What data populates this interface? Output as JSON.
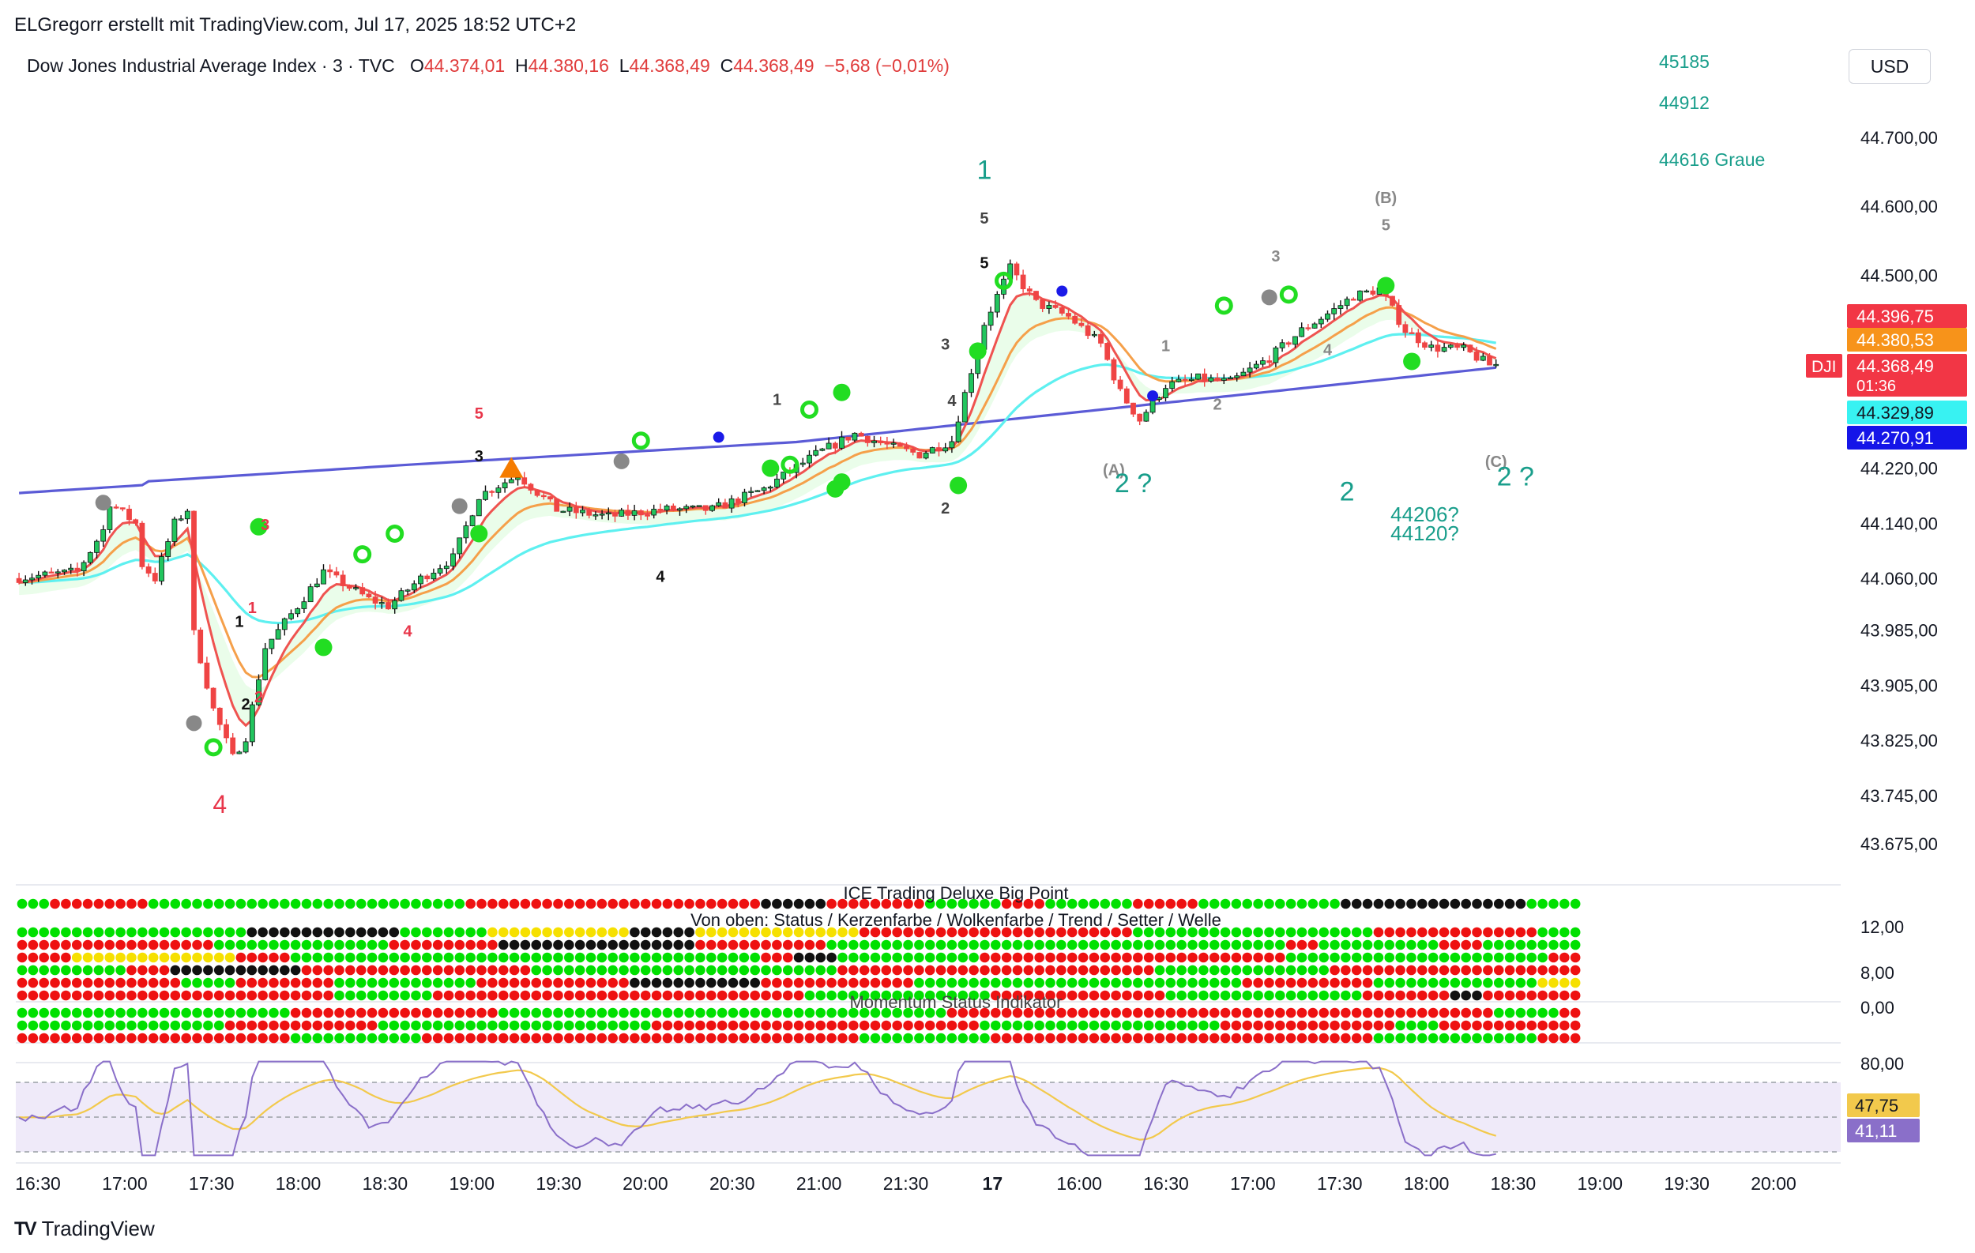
{
  "header": {
    "credit": "ELGregorr erstellt mit TradingView.com, Jul 17, 2025 18:52 UTC+2",
    "symbol": "Dow Jones Industrial Average Index · 3 · TVC",
    "open_label": "O",
    "open": "44.374,01",
    "high_label": "H",
    "high": "44.380,16",
    "low_label": "L",
    "low": "44.368,49",
    "close_label": "C",
    "close": "44.368,49",
    "change": "−5,68 (−0,01%)",
    "currency": "USD"
  },
  "footer": {
    "brand": "TradingView",
    "logo_text": "TV"
  },
  "colors": {
    "up": "#22c55e",
    "down": "#ef4444",
    "ema_red": "#ef5350",
    "ema_orange": "#f5a04a",
    "ema_cyan": "#5ef0f0",
    "ema_blue": "#5b5bd6",
    "wave_teal": "#199e8b",
    "wave_red": "#e8364a",
    "rsi": "#8a6fc9",
    "rsi_ma": "#f2c94c",
    "dot_green": "#00e000",
    "dot_red": "#ee1111",
    "dot_black": "#111111",
    "dot_yellow": "#f6e000",
    "dot_darkred": "#8b0000",
    "dot_darkgreen": "#0a7a0a"
  },
  "chart_data": {
    "type": "candlestick",
    "price_axis": {
      "range": [
        43625,
        44800
      ],
      "ticks": [
        "44.700,00",
        "44.600,00",
        "44.500,00",
        "44.220,00",
        "44.140,00",
        "44.060,00",
        "43.985,00",
        "43.905,00",
        "43.825,00",
        "43.745,00",
        "43.675,00"
      ],
      "tick_values": [
        44700,
        44600,
        44500,
        44220,
        44140,
        44060,
        43985,
        43905,
        43825,
        43745,
        43675
      ]
    },
    "time_axis": {
      "labels": [
        "16:30",
        "17:00",
        "17:30",
        "18:00",
        "18:30",
        "19:00",
        "19:30",
        "20:00",
        "20:30",
        "21:00",
        "21:30",
        "17",
        "16:00",
        "16:30",
        "17:00",
        "17:30",
        "18:00",
        "18:30",
        "19:00",
        "19:30",
        "20:00"
      ],
      "bold_index": 11
    },
    "price_tags": [
      {
        "text": "44.396,75",
        "value": 44396.75,
        "bg": "#f23645",
        "fg": "#ffffff"
      },
      {
        "text": "44.380,53",
        "value": 44380.53,
        "bg": "#f7931a",
        "fg": "#ffffff"
      },
      {
        "text": "44.368,49",
        "value": 44368.49,
        "bg": "#f23645",
        "fg": "#ffffff",
        "sub": "01:36",
        "side_label": "DJI"
      },
      {
        "text": "44.329,89",
        "value": 44329.89,
        "bg": "#38f2f2",
        "fg": "#131722"
      },
      {
        "text": "44.270,91",
        "value": 44270.91,
        "bg": "#1515e8",
        "fg": "#ffffff"
      }
    ],
    "target_labels": [
      {
        "text": "45185",
        "color": "#199e8b"
      },
      {
        "text": "44912",
        "color": "#199e8b"
      },
      {
        "text": "44616 Graue",
        "color": "#199e8b"
      }
    ],
    "wave_labels": [
      {
        "text": "1",
        "bar": 149,
        "price": 44640,
        "color": "#199e8b",
        "size": 34
      },
      {
        "text": "5",
        "bar": 149,
        "price": 44575,
        "color": "#444444",
        "size": 20,
        "bold": true
      },
      {
        "text": "5",
        "bar": 149,
        "price": 44510,
        "color": "#111111",
        "size": 20,
        "bold": true
      },
      {
        "text": "(B)",
        "bar": 211,
        "price": 44605,
        "color": "#888888",
        "size": 20,
        "bold": true
      },
      {
        "text": "5",
        "bar": 211,
        "price": 44565,
        "color": "#888888",
        "size": 20,
        "bold": true
      },
      {
        "text": "3",
        "bar": 194,
        "price": 44520,
        "color": "#888888",
        "size": 20,
        "bold": true
      },
      {
        "text": "1",
        "bar": 177,
        "price": 44390,
        "color": "#888888",
        "size": 20,
        "bold": true
      },
      {
        "text": "2",
        "bar": 185,
        "price": 44305,
        "color": "#888888",
        "size": 20,
        "bold": true
      },
      {
        "text": "4",
        "bar": 202,
        "price": 44384,
        "color": "#888888",
        "size": 20,
        "bold": true
      },
      {
        "text": "(A)",
        "bar": 169,
        "price": 44210,
        "color": "#888888",
        "size": 20,
        "bold": true
      },
      {
        "text": "2 ?",
        "bar": 172,
        "price": 44185,
        "color": "#199e8b",
        "size": 34
      },
      {
        "text": "2",
        "bar": 205,
        "price": 44173,
        "color": "#199e8b",
        "size": 34
      },
      {
        "text": "44206?",
        "bar": 217,
        "price": 44143,
        "color": "#199e8b",
        "size": 26
      },
      {
        "text": "44120?",
        "bar": 217,
        "price": 44115,
        "color": "#199e8b",
        "size": 26
      },
      {
        "text": "(C)",
        "bar": 228,
        "price": 44222,
        "color": "#888888",
        "size": 20,
        "bold": true
      },
      {
        "text": "2 ?",
        "bar": 231,
        "price": 44195,
        "color": "#199e8b",
        "size": 34
      },
      {
        "text": "1",
        "bar": 117,
        "price": 44312,
        "color": "#444444",
        "size": 20,
        "bold": true
      },
      {
        "text": "3",
        "bar": 143,
        "price": 44392,
        "color": "#444444",
        "size": 20,
        "bold": true
      },
      {
        "text": "4",
        "bar": 144,
        "price": 44310,
        "color": "#444444",
        "size": 20,
        "bold": true
      },
      {
        "text": "2",
        "bar": 143,
        "price": 44154,
        "color": "#444444",
        "size": 20,
        "bold": true
      },
      {
        "text": "3",
        "bar": 71,
        "price": 44230,
        "color": "#111111",
        "size": 20,
        "bold": true
      },
      {
        "text": "5",
        "bar": 71,
        "price": 44292,
        "color": "#e8364a",
        "size": 20,
        "bold": true
      },
      {
        "text": "4",
        "bar": 99,
        "price": 44055,
        "color": "#111111",
        "size": 20,
        "bold": true
      },
      {
        "text": "4",
        "bar": 60,
        "price": 43976,
        "color": "#e8364a",
        "size": 20,
        "bold": true
      },
      {
        "text": "3",
        "bar": 38,
        "price": 44130,
        "color": "#e8364a",
        "size": 20,
        "bold": true
      },
      {
        "text": "1",
        "bar": 36,
        "price": 44010,
        "color": "#e8364a",
        "size": 20,
        "bold": true
      },
      {
        "text": "1",
        "bar": 34,
        "price": 43990,
        "color": "#111111",
        "size": 20,
        "bold": true
      },
      {
        "text": "2",
        "bar": 37,
        "price": 43880,
        "color": "#e8364a",
        "size": 20,
        "bold": true
      },
      {
        "text": "2",
        "bar": 35,
        "price": 43870,
        "color": "#111111",
        "size": 20,
        "bold": true
      },
      {
        "text": "4",
        "bar": 31,
        "price": 43720,
        "color": "#e8364a",
        "size": 32
      }
    ],
    "panes": [
      {
        "name": "ICE Trading Deluxe Big Point",
        "axis_labels": []
      },
      {
        "name": "Von oben: Status / Kerzenfarbe / Wolkenfarbe / Trend / Setter / Welle",
        "axis_labels": [
          "12,00",
          "8,00"
        ]
      },
      {
        "name": "Momentum Status Indikator",
        "axis_labels": [
          "0,00"
        ]
      },
      {
        "name": "RSI",
        "axis_labels": [
          "80,00"
        ],
        "rsi_value": "41,11",
        "ma_value": "47,75"
      }
    ]
  }
}
